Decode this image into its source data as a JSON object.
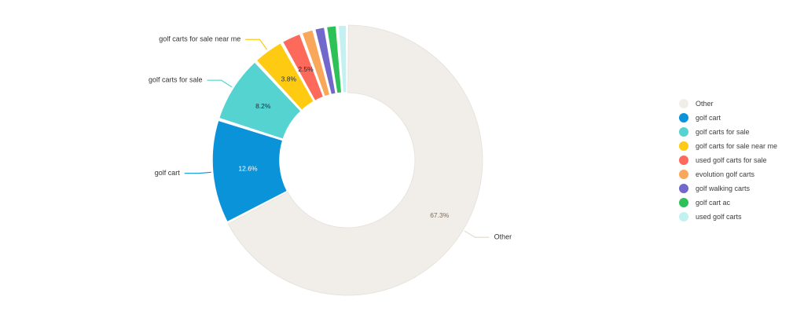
{
  "chart_data": {
    "type": "pie",
    "variant": "donut",
    "title": "",
    "legend_position": "right",
    "slices": [
      {
        "name": "Other",
        "value": 67.3,
        "label": "67.3%",
        "color": "#f1eeea",
        "label_color": "#7a6a5a",
        "callout": "Other"
      },
      {
        "name": "golf cart",
        "value": 12.6,
        "label": "12.6%",
        "color": "#0a93d8",
        "label_color": "#ffffff",
        "callout": "golf cart"
      },
      {
        "name": "golf carts for sale",
        "value": 8.2,
        "label": "8.2%",
        "color": "#55d3d1",
        "label_color": "#1f2a33",
        "callout": "golf carts for sale"
      },
      {
        "name": "golf carts for sale near me",
        "value": 3.8,
        "label": "3.8%",
        "color": "#fecb12",
        "label_color": "#1f2a33",
        "callout": "golf carts for sale near me"
      },
      {
        "name": "used golf carts for sale",
        "value": 2.5,
        "label": "2.5%",
        "color": "#fd6a5c",
        "label_color": "#1f2a33",
        "callout": ""
      },
      {
        "name": "evolution golf carts",
        "value": 1.6,
        "label": "",
        "color": "#f9a85b",
        "label_color": "#1f2a33",
        "callout": ""
      },
      {
        "name": "golf walking carts",
        "value": 1.4,
        "label": "",
        "color": "#7267cb",
        "label_color": "#1f2a33",
        "callout": ""
      },
      {
        "name": "golf cart ac",
        "value": 1.4,
        "label": "",
        "color": "#2ec157",
        "label_color": "#1f2a33",
        "callout": ""
      },
      {
        "name": "used golf carts",
        "value": 1.2,
        "label": "",
        "color": "#c3f0f0",
        "label_color": "#1f2a33",
        "callout": ""
      }
    ]
  }
}
